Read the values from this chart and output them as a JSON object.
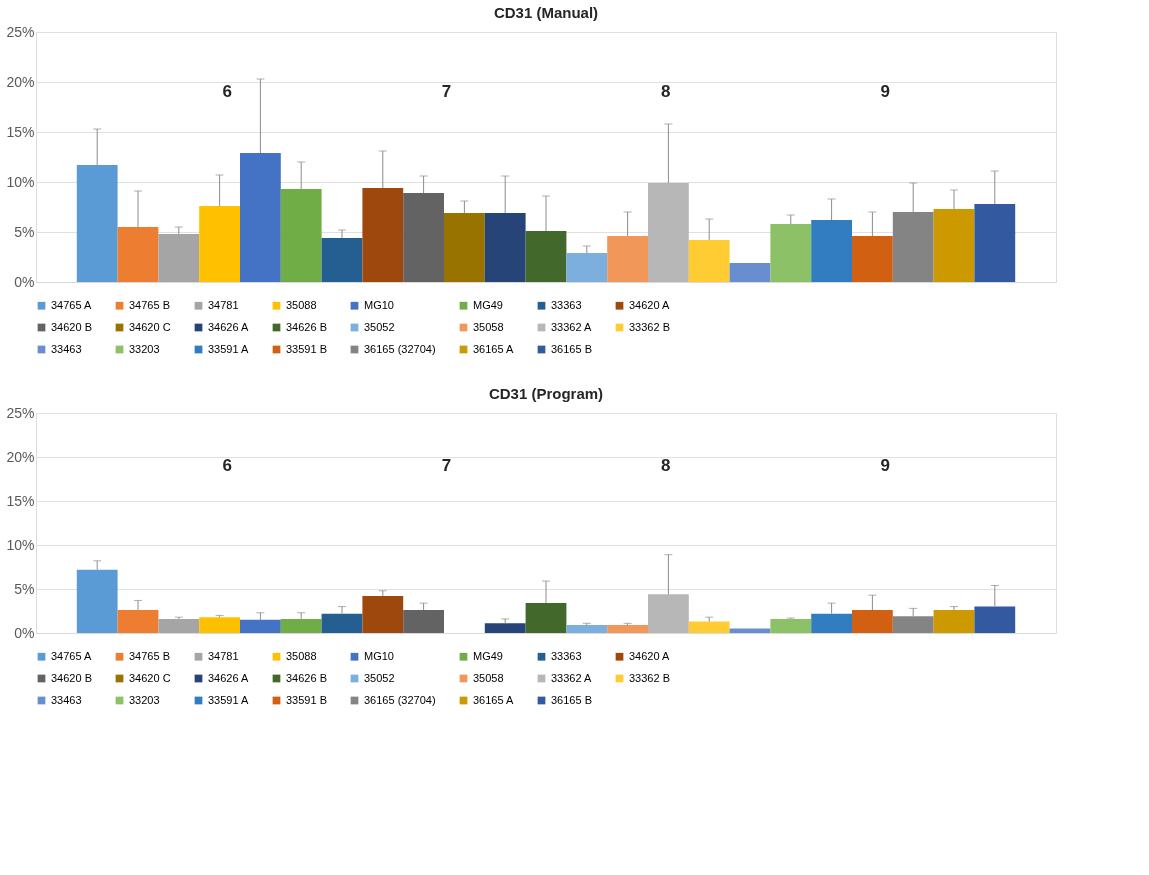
{
  "chart_data": [
    {
      "type": "bar",
      "title": "CD31 (Manual)",
      "categories": [
        null
      ],
      "ylim": [
        0,
        25
      ],
      "yticks": [
        {
          "value": 0,
          "label": "0%"
        },
        {
          "value": 5,
          "label": "5%"
        },
        {
          "value": 10,
          "label": "10%"
        },
        {
          "value": 15,
          "label": "15%"
        },
        {
          "value": 20,
          "label": "20%"
        },
        {
          "value": 25,
          "label": "25%"
        }
      ],
      "grid": "y",
      "legend": "bottom",
      "annotations": [
        "6",
        "7",
        "8",
        "9"
      ],
      "series": [
        {
          "name": "34765 A",
          "color": "#5b9bd5",
          "values": [
            11.7
          ],
          "errors": [
            [
              11.7,
              15.3
            ]
          ]
        },
        {
          "name": "34765 B",
          "color": "#ed7d31",
          "values": [
            5.5
          ],
          "errors": [
            [
              5.5,
              9.1
            ]
          ]
        },
        {
          "name": "34781",
          "color": "#a5a5a5",
          "values": [
            4.8
          ],
          "errors": [
            [
              4.8,
              5.5
            ]
          ]
        },
        {
          "name": "35088",
          "color": "#ffc000",
          "values": [
            7.6
          ],
          "errors": [
            [
              7.6,
              10.7
            ]
          ]
        },
        {
          "name": "MG10",
          "color": "#4472c4",
          "values": [
            12.9
          ],
          "errors": [
            [
              12.9,
              20.3
            ]
          ]
        },
        {
          "name": "MG49",
          "color": "#70ad47",
          "values": [
            9.3
          ],
          "errors": [
            [
              9.3,
              12.0
            ]
          ]
        },
        {
          "name": "33363",
          "color": "#255e91",
          "values": [
            4.4
          ],
          "errors": [
            [
              4.4,
              5.2
            ]
          ]
        },
        {
          "name": "34620 A",
          "color": "#9e480e",
          "values": [
            9.4
          ],
          "errors": [
            [
              9.4,
              13.1
            ]
          ]
        },
        {
          "name": "34620 B",
          "color": "#636363",
          "values": [
            8.9
          ],
          "errors": [
            [
              8.9,
              10.6
            ]
          ]
        },
        {
          "name": "34620 C",
          "color": "#997300",
          "values": [
            6.9
          ],
          "errors": [
            [
              6.9,
              8.1
            ]
          ]
        },
        {
          "name": "34626 A",
          "color": "#264478",
          "values": [
            6.9
          ],
          "errors": [
            [
              6.9,
              10.6
            ]
          ]
        },
        {
          "name": "34626 B",
          "color": "#43682b",
          "values": [
            5.1
          ],
          "errors": [
            [
              5.1,
              8.6
            ]
          ]
        },
        {
          "name": "35052",
          "color": "#7cafdd",
          "values": [
            2.9
          ],
          "errors": [
            [
              2.9,
              3.6
            ]
          ]
        },
        {
          "name": "35058",
          "color": "#f1975a",
          "values": [
            4.6
          ],
          "errors": [
            [
              4.6,
              7.0
            ]
          ]
        },
        {
          "name": "33362 A",
          "color": "#b7b7b7",
          "values": [
            9.9
          ],
          "errors": [
            [
              9.9,
              15.8
            ]
          ]
        },
        {
          "name": "33362 B",
          "color": "#ffcd33",
          "values": [
            4.2
          ],
          "errors": [
            [
              4.2,
              6.3
            ]
          ]
        },
        {
          "name": "33463",
          "color": "#698ed0",
          "values": [
            1.9
          ],
          "errors": [
            null
          ]
        },
        {
          "name": "33203",
          "color": "#8cc168",
          "values": [
            5.8
          ],
          "errors": [
            [
              5.8,
              6.7
            ]
          ]
        },
        {
          "name": "33591 A",
          "color": "#327dc2",
          "values": [
            6.2
          ],
          "errors": [
            [
              6.2,
              8.3
            ]
          ]
        },
        {
          "name": "33591 B",
          "color": "#d26012",
          "values": [
            4.6
          ],
          "errors": [
            [
              4.6,
              7.0
            ]
          ]
        },
        {
          "name": "36165 (32704)",
          "color": "#848484",
          "values": [
            7.0
          ],
          "errors": [
            [
              7.0,
              9.9
            ]
          ]
        },
        {
          "name": "36165 A",
          "color": "#cc9a00",
          "values": [
            7.3
          ],
          "errors": [
            [
              7.3,
              9.2
            ]
          ]
        },
        {
          "name": "36165 B",
          "color": "#335aa1",
          "values": [
            7.8
          ],
          "errors": [
            [
              7.8,
              11.1
            ]
          ]
        }
      ]
    },
    {
      "type": "bar",
      "title": "CD31 (Program)",
      "categories": [
        null
      ],
      "ylim": [
        0,
        25
      ],
      "yticks": [
        {
          "value": 0,
          "label": "0%"
        },
        {
          "value": 5,
          "label": "5%"
        },
        {
          "value": 10,
          "label": "10%"
        },
        {
          "value": 15,
          "label": "15%"
        },
        {
          "value": 20,
          "label": "20%"
        },
        {
          "value": 25,
          "label": "25%"
        }
      ],
      "grid": "y",
      "legend": "bottom",
      "annotations": [
        "6",
        "7",
        "8",
        "9"
      ],
      "series": [
        {
          "name": "34765 A",
          "color": "#5b9bd5",
          "values": [
            7.2
          ],
          "errors": [
            [
              7.2,
              8.2
            ]
          ]
        },
        {
          "name": "34765 B",
          "color": "#ed7d31",
          "values": [
            2.6
          ],
          "errors": [
            [
              2.6,
              3.7
            ]
          ]
        },
        {
          "name": "34781",
          "color": "#a5a5a5",
          "values": [
            1.6
          ],
          "errors": [
            [
              1.6,
              1.8
            ]
          ]
        },
        {
          "name": "35088",
          "color": "#ffc000",
          "values": [
            1.8
          ],
          "errors": [
            [
              1.8,
              2.0
            ]
          ]
        },
        {
          "name": "MG10",
          "color": "#4472c4",
          "values": [
            1.5
          ],
          "errors": [
            [
              1.5,
              2.3
            ]
          ]
        },
        {
          "name": "MG49",
          "color": "#70ad47",
          "values": [
            1.6
          ],
          "errors": [
            [
              1.6,
              2.3
            ]
          ]
        },
        {
          "name": "33363",
          "color": "#255e91",
          "values": [
            2.2
          ],
          "errors": [
            [
              2.2,
              3.0
            ]
          ]
        },
        {
          "name": "34620 A",
          "color": "#9e480e",
          "values": [
            4.2
          ],
          "errors": [
            [
              4.2,
              4.8
            ]
          ]
        },
        {
          "name": "34620 B",
          "color": "#636363",
          "values": [
            2.6
          ],
          "errors": [
            [
              2.6,
              3.4
            ]
          ]
        },
        {
          "name": "34620 C",
          "color": "#997300",
          "values": [
            null
          ],
          "errors": [
            null
          ]
        },
        {
          "name": "34626 A",
          "color": "#264478",
          "values": [
            1.1
          ],
          "errors": [
            [
              1.1,
              1.6
            ]
          ]
        },
        {
          "name": "34626 B",
          "color": "#43682b",
          "values": [
            3.4
          ],
          "errors": [
            [
              3.4,
              5.9
            ]
          ]
        },
        {
          "name": "35052",
          "color": "#7cafdd",
          "values": [
            0.9
          ],
          "errors": [
            [
              0.9,
              1.1
            ]
          ]
        },
        {
          "name": "35058",
          "color": "#f1975a",
          "values": [
            0.9
          ],
          "errors": [
            [
              0.9,
              1.1
            ]
          ]
        },
        {
          "name": "33362 A",
          "color": "#b7b7b7",
          "values": [
            4.4
          ],
          "errors": [
            [
              4.4,
              8.9
            ]
          ]
        },
        {
          "name": "33362 B",
          "color": "#ffcd33",
          "values": [
            1.3
          ],
          "errors": [
            [
              1.3,
              1.8
            ]
          ]
        },
        {
          "name": "33463",
          "color": "#698ed0",
          "values": [
            0.5
          ],
          "errors": [
            null
          ]
        },
        {
          "name": "33203",
          "color": "#8cc168",
          "values": [
            1.6
          ],
          "errors": [
            [
              1.6,
              1.7
            ]
          ]
        },
        {
          "name": "33591 A",
          "color": "#327dc2",
          "values": [
            2.2
          ],
          "errors": [
            [
              2.2,
              3.4
            ]
          ]
        },
        {
          "name": "33591 B",
          "color": "#d26012",
          "values": [
            2.6
          ],
          "errors": [
            [
              2.6,
              4.3
            ]
          ]
        },
        {
          "name": "36165 (32704)",
          "color": "#848484",
          "values": [
            1.9
          ],
          "errors": [
            [
              1.9,
              2.8
            ]
          ]
        },
        {
          "name": "36165 A",
          "color": "#cc9a00",
          "values": [
            2.6
          ],
          "errors": [
            [
              2.6,
              3.0
            ]
          ]
        },
        {
          "name": "36165 B",
          "color": "#335aa1",
          "values": [
            3.0
          ],
          "errors": [
            [
              3.0,
              5.4
            ]
          ]
        }
      ]
    }
  ]
}
